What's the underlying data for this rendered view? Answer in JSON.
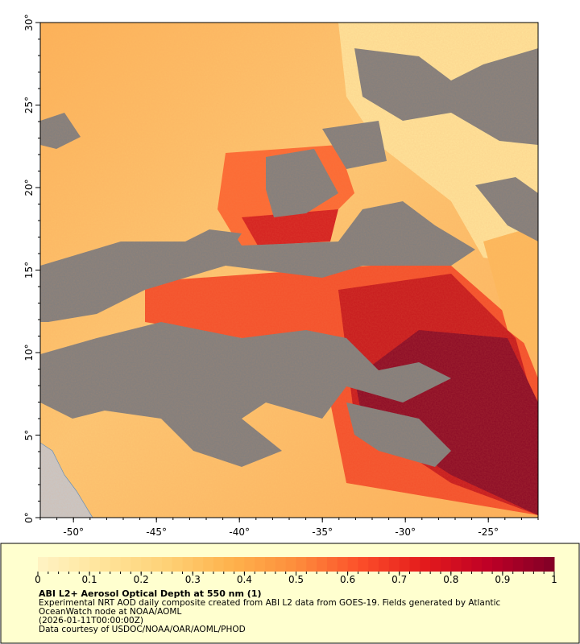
{
  "map": {
    "xlim": [
      -52,
      -22
    ],
    "ylim": [
      0,
      30
    ],
    "xticks": [
      {
        "value": -50,
        "label": "-50°"
      },
      {
        "value": -45,
        "label": "-45°"
      },
      {
        "value": -40,
        "label": "-40°"
      },
      {
        "value": -35,
        "label": "-35°"
      },
      {
        "value": -30,
        "label": "-30°"
      },
      {
        "value": -25,
        "label": "-25°"
      }
    ],
    "yticks": [
      {
        "value": 0,
        "label": "0°"
      },
      {
        "value": 5,
        "label": "5°"
      },
      {
        "value": 10,
        "label": "10°"
      },
      {
        "value": 15,
        "label": "15°"
      },
      {
        "value": 20,
        "label": "20°"
      },
      {
        "value": 25,
        "label": "25°"
      },
      {
        "value": 30,
        "label": "30°"
      }
    ]
  },
  "colorbar": {
    "lim": [
      0,
      1
    ],
    "ticks": [
      0,
      0.1,
      0.2,
      0.3,
      0.4,
      0.5,
      0.6,
      0.7,
      0.8,
      0.9,
      1
    ],
    "colors": [
      "#fff3c4",
      "#ffe49a",
      "#fed176",
      "#feb24c",
      "#fd8d3c",
      "#fc4e2a",
      "#e31a1c",
      "#bd0026",
      "#800026"
    ]
  },
  "caption": {
    "title": "ABI L2+ Aerosol Optical Depth at 550 nm (1)",
    "description": "Experimental NRT AOD daily composite created from ABI L2 data from GOES-19. Fields generated by Atlantic OceanWatch node at NOAA/AOML",
    "time": "(2026-01-11T00:00:00Z)",
    "credit": "Data courtesy of USDOC/NOAA/OAR/AOML/PHOD"
  }
}
